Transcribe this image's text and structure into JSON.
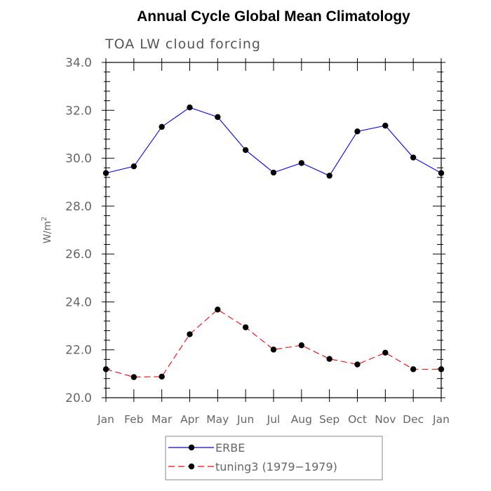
{
  "chart_data": {
    "type": "line",
    "title": "Annual Cycle Global Mean Climatology",
    "subtitle": "TOA LW cloud forcing",
    "ylabel": "W/m",
    "ylabel_sup": "2",
    "ylim": [
      20.0,
      34.0
    ],
    "yticks": [
      "20.0",
      "22.0",
      "24.0",
      "26.0",
      "28.0",
      "30.0",
      "32.0",
      "34.0"
    ],
    "categories": [
      "Jan",
      "Feb",
      "Mar",
      "Apr",
      "May",
      "Jun",
      "Jul",
      "Aug",
      "Sep",
      "Oct",
      "Nov",
      "Dec",
      "Jan"
    ],
    "series": [
      {
        "name": "ERBE",
        "color": "#0000ff",
        "dash": "solid",
        "values": [
          29.38,
          29.66,
          31.31,
          32.12,
          31.72,
          30.34,
          29.4,
          29.8,
          29.27,
          31.12,
          31.36,
          30.03,
          29.38
        ]
      },
      {
        "name": "tuning3 (1979−1979)",
        "color": "#ff0000",
        "dash": "dashed",
        "values": [
          21.19,
          20.86,
          20.88,
          22.65,
          23.68,
          22.94,
          22.01,
          22.19,
          21.62,
          21.39,
          21.88,
          21.19,
          21.19
        ]
      }
    ],
    "legend_position": "bottom-center",
    "grid": false
  }
}
